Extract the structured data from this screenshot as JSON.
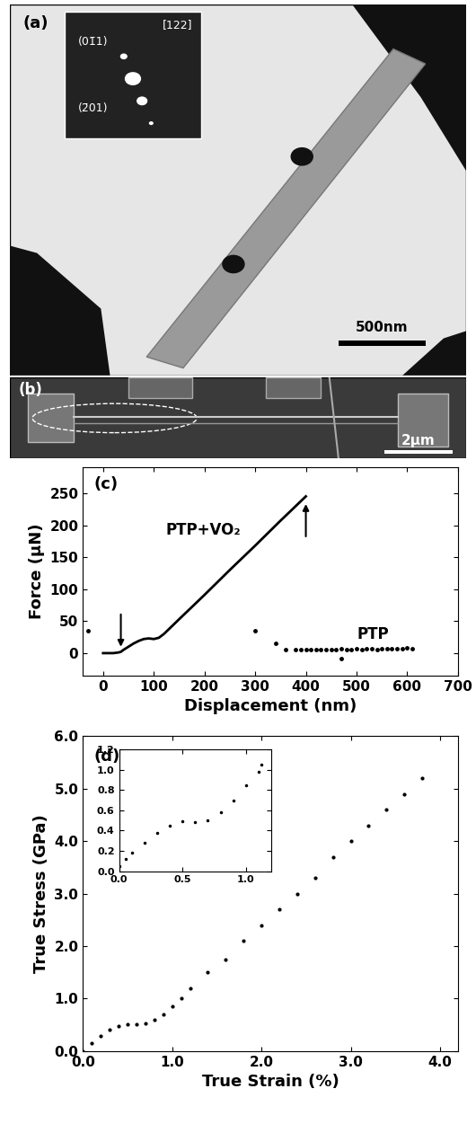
{
  "image_panels": [
    {
      "label": "(a)",
      "zone_axis": "[122]",
      "spots": [
        "(01̄1)",
        "(2̄01)"
      ],
      "scale_bar": "500nm"
    },
    {
      "label": "(b)",
      "scale_bar": "2μm"
    }
  ],
  "chart_data": [
    {
      "type": "line",
      "title": "(c)",
      "x_label": "Displacement (nm)",
      "y_label": "Force (μN)",
      "xlim": [
        -40,
        700
      ],
      "xticks": [
        0,
        100,
        200,
        300,
        400,
        500,
        600,
        700
      ],
      "ylim": [
        -35,
        290
      ],
      "yticks": [
        0,
        50,
        100,
        150,
        200,
        250
      ],
      "grid": false,
      "series": [
        {
          "name": "PTP+VO₂",
          "color": "#000000",
          "marker": "none",
          "line_style": "solid",
          "x": [
            0,
            10,
            20,
            30,
            35,
            40,
            50,
            60,
            70,
            80,
            90,
            100,
            110,
            120,
            150,
            200,
            250,
            300,
            350,
            400
          ],
          "values": [
            0,
            0,
            0,
            1,
            2,
            5,
            10,
            15,
            19,
            22,
            23,
            22,
            24,
            30,
            53,
            91,
            130,
            168,
            207,
            245
          ]
        },
        {
          "name": "PTP",
          "color": "#000000",
          "marker": "dot",
          "line_style": "none",
          "x": [
            -30,
            300,
            340,
            360,
            470,
            380,
            390,
            400,
            410,
            420,
            430,
            440,
            450,
            460,
            470,
            480,
            490,
            500,
            510,
            520,
            530,
            540,
            550,
            560,
            570,
            580,
            590,
            600,
            610
          ],
          "values": [
            35,
            35,
            15,
            5,
            -8,
            5,
            5,
            6,
            5,
            6,
            6,
            5,
            6,
            6,
            7,
            6,
            6,
            7,
            6,
            7,
            7,
            6,
            7,
            7,
            7,
            7,
            7,
            8,
            7
          ]
        }
      ]
    },
    {
      "type": "scatter",
      "title": "(d)",
      "x_label": "True Strain (%)",
      "y_label": "True Stress (GPa)",
      "xlim": [
        0,
        4.2
      ],
      "xticks": [
        {
          "value": 0,
          "label": "0.0"
        },
        {
          "value": 1,
          "label": "1.0"
        },
        {
          "value": 2,
          "label": "2.0"
        },
        {
          "value": 3,
          "label": "3.0"
        },
        {
          "value": 4,
          "label": "4.0"
        }
      ],
      "ylim": [
        0,
        6
      ],
      "yticks": [
        {
          "value": 0,
          "label": "0.0"
        },
        {
          "value": 1,
          "label": "1.0"
        },
        {
          "value": 2,
          "label": "2.0"
        },
        {
          "value": 3,
          "label": "3.0"
        },
        {
          "value": 4,
          "label": "4.0"
        },
        {
          "value": 5,
          "label": "5.0"
        },
        {
          "value": 6,
          "label": "6.0"
        }
      ],
      "grid": false,
      "color": "#000000",
      "marker": "dot",
      "x": [
        0,
        0.1,
        0.2,
        0.3,
        0.4,
        0.5,
        0.6,
        0.7,
        0.8,
        0.9,
        1.0,
        1.1,
        1.2,
        1.4,
        1.6,
        1.8,
        2.0,
        2.2,
        2.4,
        2.6,
        2.8,
        3.0,
        3.2,
        3.4,
        3.6,
        3.8
      ],
      "values": [
        0,
        0.15,
        0.28,
        0.4,
        0.48,
        0.5,
        0.5,
        0.52,
        0.6,
        0.7,
        0.85,
        1.0,
        1.2,
        1.5,
        1.75,
        2.1,
        2.4,
        2.7,
        3.0,
        3.3,
        3.7,
        4.0,
        4.3,
        4.6,
        4.9,
        5.2
      ]
    },
    {
      "type": "scatter",
      "xlim": [
        0,
        1.2
      ],
      "xticks": [
        {
          "value": 0,
          "label": "0.0"
        },
        {
          "value": 0.5,
          "label": "0.5"
        },
        {
          "value": 1.0,
          "label": "1.0"
        }
      ],
      "ylim": [
        0,
        1.2
      ],
      "yticks": [
        {
          "value": 0,
          "label": "0.0"
        },
        {
          "value": 0.2,
          "label": "0.2"
        },
        {
          "value": 0.4,
          "label": "0.4"
        },
        {
          "value": 0.6,
          "label": "0.6"
        },
        {
          "value": 0.8,
          "label": "0.8"
        },
        {
          "value": 1.0,
          "label": "1.0"
        },
        {
          "value": 1.2,
          "label": "1.2"
        }
      ],
      "grid": false,
      "color": "#000000",
      "marker": "dot",
      "x": [
        0,
        0.05,
        0.1,
        0.2,
        0.3,
        0.4,
        0.5,
        0.6,
        0.7,
        0.8,
        0.9,
        1.0,
        1.1,
        1.12
      ],
      "values": [
        0.05,
        0.12,
        0.18,
        0.28,
        0.38,
        0.45,
        0.49,
        0.48,
        0.5,
        0.58,
        0.7,
        0.85,
        0.98,
        1.05
      ]
    }
  ]
}
